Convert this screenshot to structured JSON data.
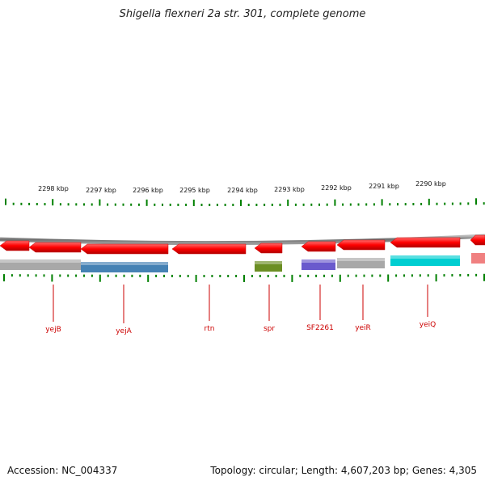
{
  "title": "Shigella flexneri 2a str. 301, complete genome",
  "accession_label": "Accession: NC_004337",
  "summary_label": "Topology: circular; Length: 4,607,203 bp; Genes: 4,305",
  "ruler": [
    "2298 kbp",
    "2297 kbp",
    "2296 kbp",
    "2295 kbp",
    "2294 kbp",
    "2293 kbp",
    "2292 kbp",
    "2291 kbp",
    "2290 kbp"
  ],
  "genes": [
    {
      "label": "yejB",
      "color": "#a8a8a8"
    },
    {
      "label": "yejA",
      "color": "#4682b4"
    },
    {
      "label": "rtn",
      "color": "none"
    },
    {
      "label": "spr",
      "color": "#6b8e23"
    },
    {
      "label": "SF2261",
      "color": "#6a5acd"
    },
    {
      "label": "yeiR",
      "color": "#a8a8a8"
    },
    {
      "label": "yeiQ",
      "color": "#00ced1"
    }
  ],
  "colors": {
    "cds": "#ff0000",
    "ticks": "#008000",
    "label": "#cc0000",
    "backbone": "#808080"
  }
}
